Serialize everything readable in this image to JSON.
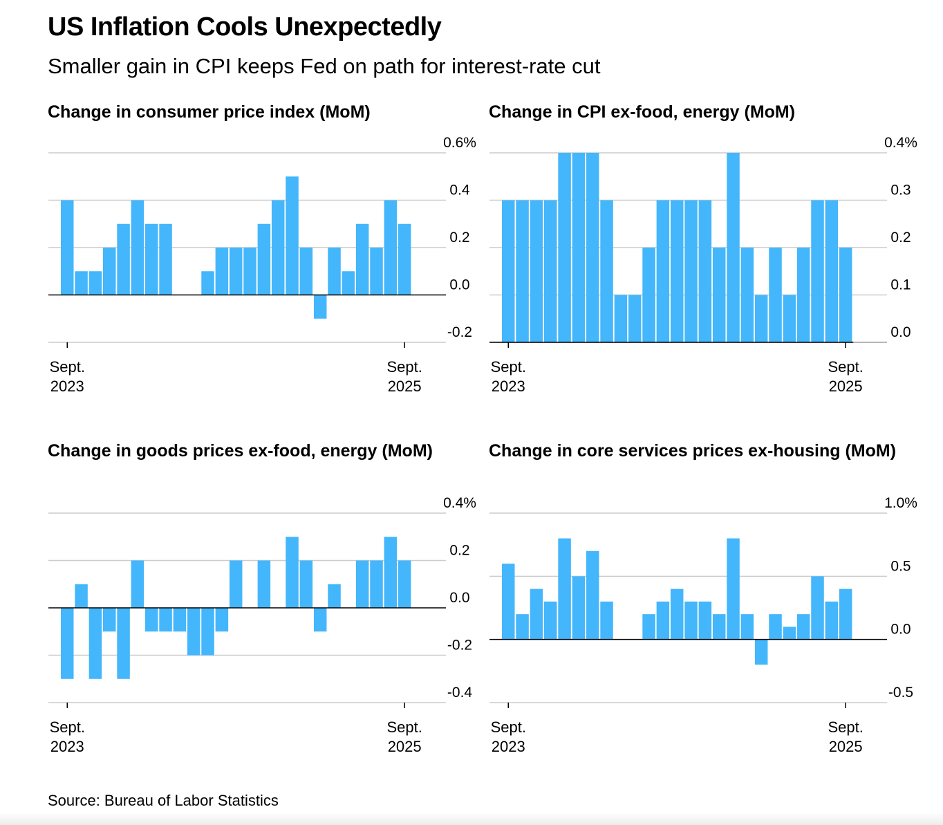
{
  "title": "US Inflation Cools Unexpectedly",
  "subtitle": "Smaller gain in CPI keeps Fed on path for interest-rate cut",
  "source": "Source: Bureau of Labor Statistics",
  "colors": {
    "bar": "#44b6fb",
    "grid": "#cccccc",
    "zero_line": "#000000"
  },
  "chart_data": [
    {
      "id": "cpi",
      "type": "bar",
      "title": "Change in consumer price index (MoM)",
      "ylabel": "%",
      "ylim": [
        -0.2,
        0.6
      ],
      "yticks": [
        "0.6%",
        "0.4",
        "0.2",
        "0.0",
        "-0.2"
      ],
      "ytick_values": [
        0.6,
        0.4,
        0.2,
        0.0,
        -0.2
      ],
      "baseline": 0,
      "x_start": "Sept. 2023",
      "x_end": "Sept. 2025",
      "xtick_labels": [
        [
          "Sept.",
          "2023"
        ],
        [
          "Sept.",
          "2025"
        ]
      ],
      "xtick_index": [
        0,
        24
      ],
      "values": [
        0.4,
        0.1,
        0.1,
        0.2,
        0.3,
        0.4,
        0.3,
        0.3,
        0.0,
        0.0,
        0.1,
        0.2,
        0.2,
        0.2,
        0.3,
        0.4,
        0.5,
        0.2,
        -0.1,
        0.2,
        0.1,
        0.3,
        0.2,
        0.4,
        0.3
      ]
    },
    {
      "id": "core",
      "type": "bar",
      "title": "Change in CPI ex-food, energy (MoM)",
      "ylabel": "%",
      "ylim": [
        0.0,
        0.4
      ],
      "yticks": [
        "0.4%",
        "0.3",
        "0.2",
        "0.1",
        "0.0"
      ],
      "ytick_values": [
        0.4,
        0.3,
        0.2,
        0.1,
        0.0
      ],
      "baseline": 0,
      "x_start": "Sept. 2023",
      "x_end": "Sept. 2025",
      "xtick_labels": [
        [
          "Sept.",
          "2023"
        ],
        [
          "Sept.",
          "2025"
        ]
      ],
      "xtick_index": [
        0,
        24
      ],
      "values": [
        0.3,
        0.3,
        0.3,
        0.3,
        0.4,
        0.4,
        0.4,
        0.3,
        0.1,
        0.1,
        0.2,
        0.3,
        0.3,
        0.3,
        0.3,
        0.2,
        0.4,
        0.2,
        0.1,
        0.2,
        0.1,
        0.2,
        0.3,
        0.3,
        0.2
      ]
    },
    {
      "id": "goods",
      "type": "bar",
      "title": "Change in goods prices ex-food, energy (MoM)",
      "ylabel": "%",
      "ylim": [
        -0.4,
        0.4
      ],
      "yticks": [
        "0.4%",
        "0.2",
        "0.0",
        "-0.2",
        "-0.4"
      ],
      "ytick_values": [
        0.4,
        0.2,
        0.0,
        -0.2,
        -0.4
      ],
      "baseline": 0,
      "x_start": "Sept. 2023",
      "x_end": "Sept. 2025",
      "xtick_labels": [
        [
          "Sept.",
          "2023"
        ],
        [
          "Sept.",
          "2025"
        ]
      ],
      "xtick_index": [
        0,
        24
      ],
      "values": [
        -0.3,
        0.1,
        -0.3,
        -0.1,
        -0.3,
        0.2,
        -0.1,
        -0.1,
        -0.1,
        -0.2,
        -0.2,
        -0.1,
        0.2,
        0.0,
        0.2,
        0.0,
        0.3,
        0.2,
        -0.1,
        0.1,
        0.0,
        0.2,
        0.2,
        0.3,
        0.2
      ]
    },
    {
      "id": "supercore",
      "type": "bar",
      "title": "Change in core services prices ex-housing (MoM)",
      "ylabel": "%",
      "ylim": [
        -0.5,
        1.0
      ],
      "yticks": [
        "1.0%",
        "0.5",
        "0.0",
        "-0.5"
      ],
      "ytick_values": [
        1.0,
        0.5,
        0.0,
        -0.5
      ],
      "baseline": 0,
      "x_start": "Sept. 2023",
      "x_end": "Sept. 2025",
      "xtick_labels": [
        [
          "Sept.",
          "2023"
        ],
        [
          "Sept.",
          "2025"
        ]
      ],
      "xtick_index": [
        0,
        24
      ],
      "values": [
        0.6,
        0.2,
        0.4,
        0.3,
        0.8,
        0.5,
        0.7,
        0.3,
        0.0,
        0.0,
        0.2,
        0.3,
        0.4,
        0.3,
        0.3,
        0.2,
        0.8,
        0.2,
        -0.2,
        0.2,
        0.1,
        0.2,
        0.5,
        0.3,
        0.4
      ]
    }
  ]
}
